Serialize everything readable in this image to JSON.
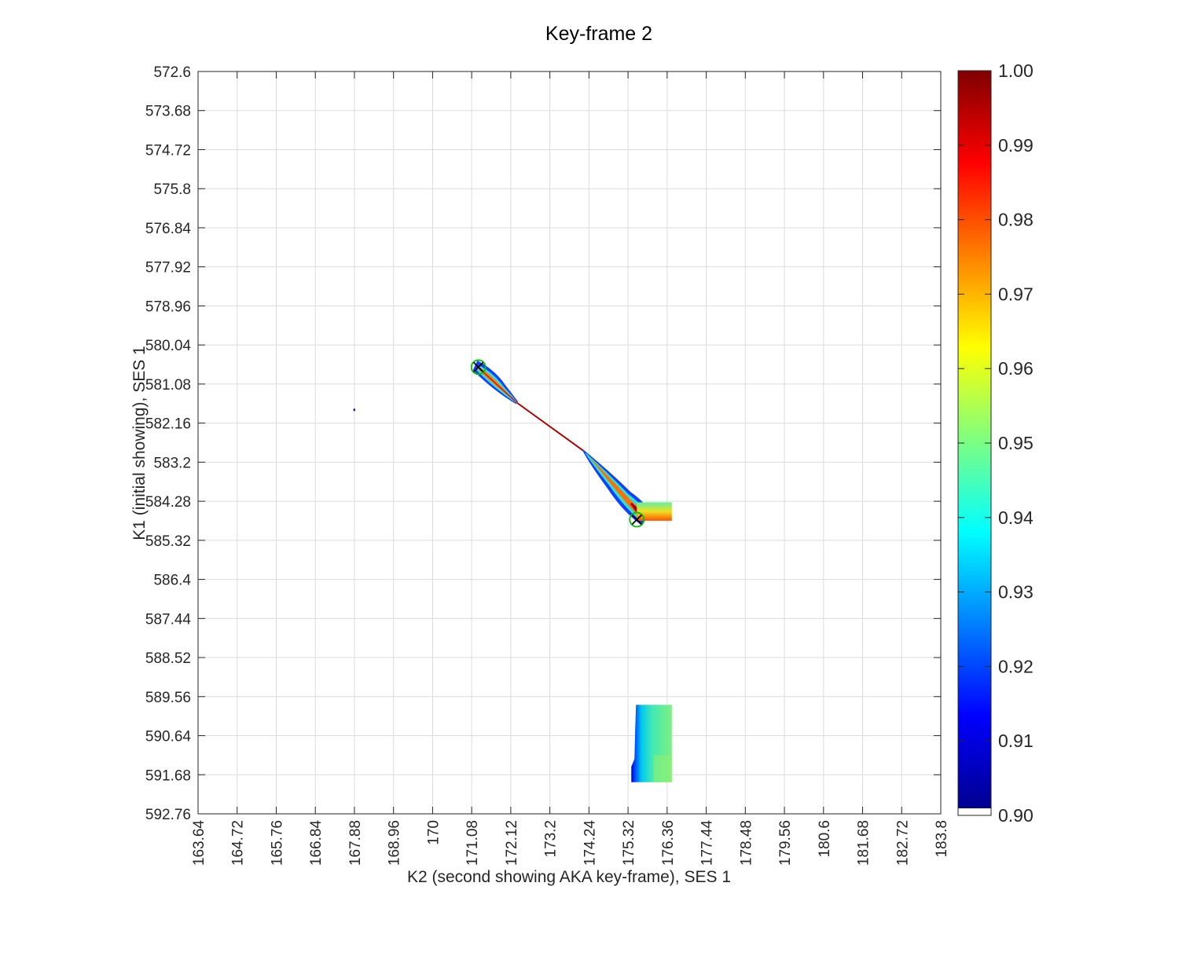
{
  "chart_data": {
    "type": "heatmap",
    "title": "Key-frame 2",
    "xlabel": "K2 (second showing AKA key-frame), SES 1",
    "ylabel": "K1 (initial showing), SES 1",
    "xlim": [
      163.64,
      183.8
    ],
    "ylim": [
      572.6,
      592.76
    ],
    "y_reversed": true,
    "grid": true,
    "x_ticks": [
      "163.64",
      "164.72",
      "165.76",
      "166.84",
      "167.88",
      "168.96",
      "170",
      "171.08",
      "172.12",
      "173.2",
      "174.24",
      "175.32",
      "176.36",
      "177.44",
      "178.48",
      "179.56",
      "180.6",
      "181.68",
      "182.72",
      "183.8"
    ],
    "y_ticks": [
      "572.6",
      "573.68",
      "574.72",
      "575.8",
      "576.84",
      "577.92",
      "578.96",
      "580.04",
      "581.08",
      "582.16",
      "583.2",
      "584.28",
      "585.32",
      "586.4",
      "587.44",
      "588.52",
      "589.56",
      "590.64",
      "591.68",
      "592.76"
    ],
    "colorbar": {
      "colormap": "jet",
      "range": [
        0.9,
        1.0
      ],
      "ticks": [
        "0.90",
        "0.91",
        "0.92",
        "0.93",
        "0.94",
        "0.95",
        "0.96",
        "0.97",
        "0.98",
        "0.99",
        "1.00"
      ]
    },
    "regions": [
      {
        "name": "diagonal-band-upper",
        "from": [
          171.2,
          580.6
        ],
        "to": [
          172.3,
          581.6
        ],
        "value_range": [
          0.92,
          0.985
        ]
      },
      {
        "name": "diagonal-line",
        "from": [
          172.3,
          581.6
        ],
        "to": [
          174.1,
          582.9
        ],
        "value": 0.99
      },
      {
        "name": "diagonal-band-lower",
        "from": [
          174.1,
          582.9
        ],
        "to": [
          175.7,
          584.7
        ],
        "value_range": [
          0.92,
          0.99
        ]
      },
      {
        "name": "horizontal-block",
        "x": [
          175.55,
          176.5
        ],
        "y": [
          584.3,
          584.8
        ],
        "value_range": [
          0.95,
          0.985
        ]
      },
      {
        "name": "lower-right-block",
        "x": [
          175.4,
          176.5
        ],
        "y": [
          589.8,
          591.9
        ],
        "value_range": [
          0.905,
          0.955
        ]
      },
      {
        "name": "isolated-point",
        "x": 167.88,
        "y": 581.8,
        "value": 0.9
      }
    ],
    "markers": [
      {
        "x": 171.25,
        "y": 580.63,
        "symbol": "x-in-circle",
        "color": "#00c000"
      },
      {
        "x": 175.55,
        "y": 584.77,
        "symbol": "x-in-circle",
        "color": "#00c000"
      }
    ]
  }
}
